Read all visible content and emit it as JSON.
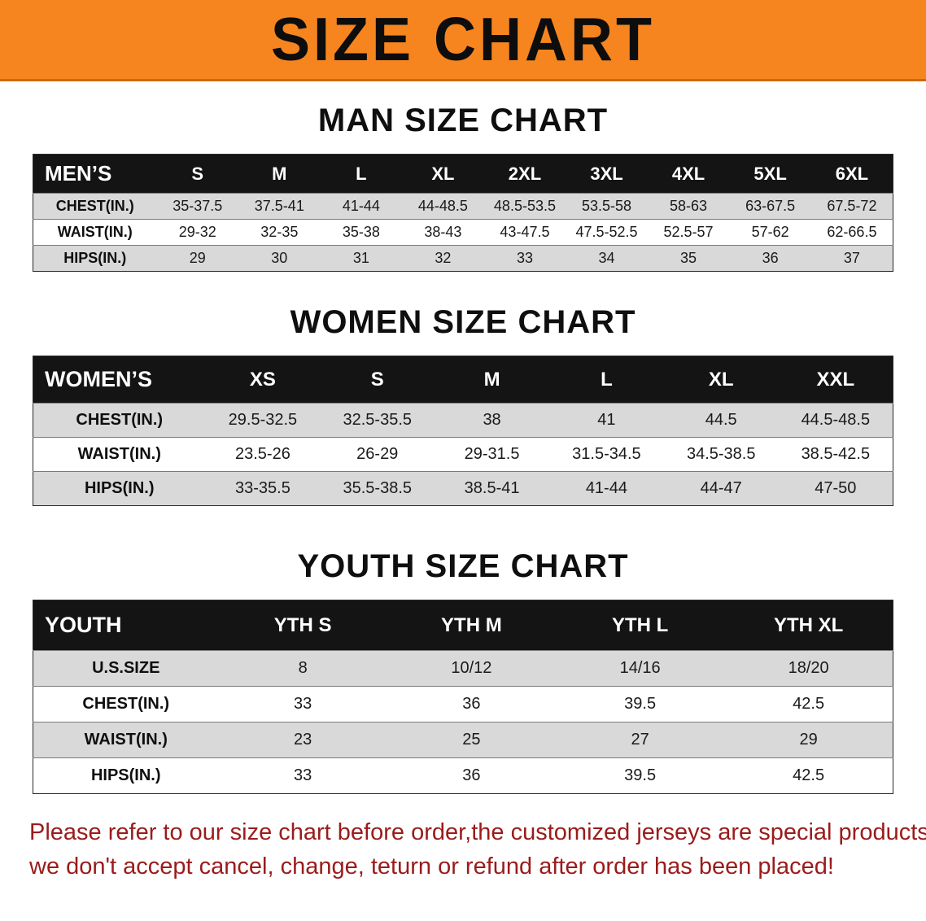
{
  "banner": {
    "title": "SIZE CHART"
  },
  "colors": {
    "banner_bg": "#F6851F",
    "table_header_bg": "#141414",
    "row_alt_bg": "#D9D9D9",
    "footer_text": "#9B1B1B"
  },
  "sections": [
    {
      "id": "men",
      "title": "MAN SIZE CHART",
      "table": {
        "header": [
          "MEN’S",
          "S",
          "M",
          "L",
          "XL",
          "2XL",
          "3XL",
          "4XL",
          "5XL",
          "6XL"
        ],
        "rows": [
          [
            "CHEST(IN.)",
            "35-37.5",
            "37.5-41",
            "41-44",
            "44-48.5",
            "48.5-53.5",
            "53.5-58",
            "58-63",
            "63-67.5",
            "67.5-72"
          ],
          [
            "WAIST(IN.)",
            "29-32",
            "32-35",
            "35-38",
            "38-43",
            "43-47.5",
            "47.5-52.5",
            "52.5-57",
            "57-62",
            "62-66.5"
          ],
          [
            "HIPS(IN.)",
            "29",
            "30",
            "31",
            "32",
            "33",
            "34",
            "35",
            "36",
            "37"
          ]
        ]
      }
    },
    {
      "id": "women",
      "title": "WOMEN SIZE CHART",
      "table": {
        "header": [
          "WOMEN’S",
          "XS",
          "S",
          "M",
          "L",
          "XL",
          "XXL"
        ],
        "rows": [
          [
            "CHEST(IN.)",
            "29.5-32.5",
            "32.5-35.5",
            "38",
            "41",
            "44.5",
            "44.5-48.5"
          ],
          [
            "WAIST(IN.)",
            "23.5-26",
            "26-29",
            "29-31.5",
            "31.5-34.5",
            "34.5-38.5",
            "38.5-42.5"
          ],
          [
            "HIPS(IN.)",
            "33-35.5",
            "35.5-38.5",
            "38.5-41",
            "41-44",
            "44-47",
            "47-50"
          ]
        ]
      }
    },
    {
      "id": "youth",
      "title": "YOUTH SIZE CHART",
      "table": {
        "header": [
          "YOUTH",
          "YTH S",
          "YTH M",
          "YTH L",
          "YTH XL"
        ],
        "rows": [
          [
            "U.S.SIZE",
            "8",
            "10/12",
            "14/16",
            "18/20"
          ],
          [
            "CHEST(IN.)",
            "33",
            "36",
            "39.5",
            "42.5"
          ],
          [
            "WAIST(IN.)",
            "23",
            "25",
            "27",
            "29"
          ],
          [
            "HIPS(IN.)",
            "33",
            "36",
            "39.5",
            "42.5"
          ]
        ]
      }
    }
  ],
  "footer": {
    "line1": "Please refer to our size chart before order,the customized jerseys are special products,",
    "line2": "we don't accept cancel, change, teturn or refund after order has been placed!"
  }
}
